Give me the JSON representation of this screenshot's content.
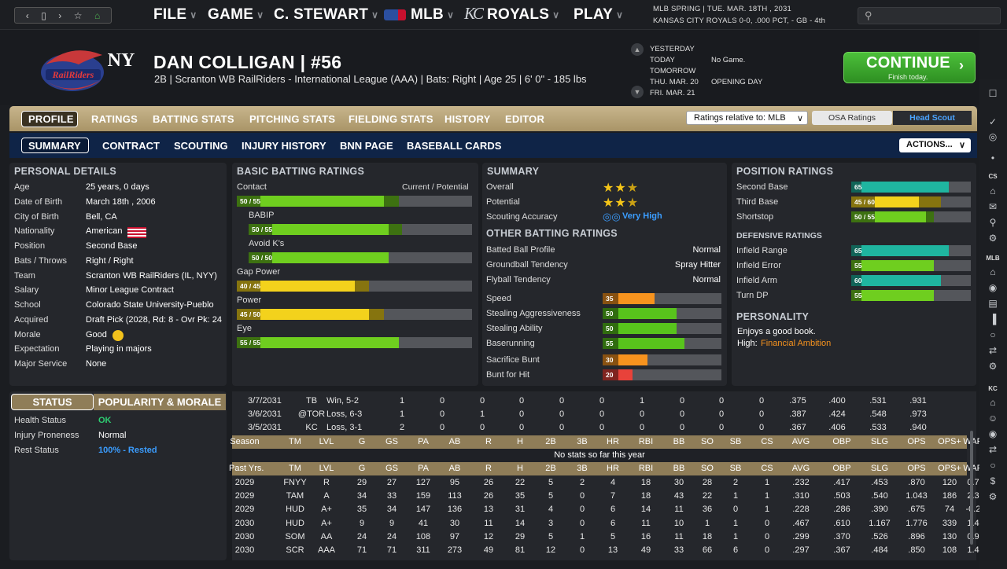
{
  "topbar": {
    "menus": [
      {
        "label": "FILE"
      },
      {
        "label": "GAME"
      },
      {
        "label": "C. STEWART"
      },
      {
        "label": "MLB"
      },
      {
        "label": "ROYALS"
      },
      {
        "label": "PLAY"
      }
    ],
    "game_info_line1": "MLB SPRING  |  TUE. MAR. 18TH , 2031",
    "game_info_line2": "KANSAS CITY ROYALS  0-0, .000 PCT, - GB - 4th"
  },
  "player": {
    "name": "DAN COLLIGAN  |  #56",
    "info": "2B | Scranton WB RailRiders - International League (AAA)  |  Bats: Right  |  Age 25  |  6' 0\" - 185 lbs"
  },
  "schedule": [
    {
      "day": "YESTERDAY",
      "event": ""
    },
    {
      "day": "TODAY",
      "event": "No Game."
    },
    {
      "day": "TOMORROW",
      "event": ""
    },
    {
      "day": "THU. MAR. 20",
      "event": "OPENING DAY"
    },
    {
      "day": "FRI. MAR. 21",
      "event": ""
    }
  ],
  "continue_button": {
    "label": "CONTINUE",
    "sub": "Finish today."
  },
  "tabs_main": [
    "PROFILE",
    "RATINGS",
    "BATTING STATS",
    "PITCHING STATS",
    "FIELDING STATS",
    "HISTORY",
    "EDITOR"
  ],
  "ratings_select": "Ratings relative to: MLB",
  "osa_button": "OSA Ratings",
  "scout_button": "Head Scout",
  "tabs_sub": [
    "SUMMARY",
    "CONTRACT",
    "SCOUTING",
    "INJURY HISTORY",
    "BNN PAGE",
    "BASEBALL CARDS"
  ],
  "actions_button": "ACTIONS...",
  "personal": {
    "title": "PERSONAL DETAILS",
    "rows": [
      {
        "label": "Age",
        "value": "25 years, 0 days"
      },
      {
        "label": "Date of Birth",
        "value": "March 18th , 2006"
      },
      {
        "label": "City of Birth",
        "value": "Bell, CA"
      },
      {
        "label": "Nationality",
        "value": "American"
      },
      {
        "label": "Position",
        "value": "Second Base"
      },
      {
        "label": "Bats / Throws",
        "value": "Right / Right"
      },
      {
        "label": "Team",
        "value": "Scranton WB RailRiders (IL, NYY)"
      },
      {
        "label": "Salary",
        "value": "Minor League Contract"
      },
      {
        "label": "School",
        "value": "Colorado State University-Pueblo"
      },
      {
        "label": "Acquired",
        "value": "Draft Pick (2028, Rd: 8 - Ovr Pk: 24"
      },
      {
        "label": "Morale",
        "value": "Good"
      },
      {
        "label": "Expectation",
        "value": "Playing in majors"
      },
      {
        "label": "Major Service",
        "value": "None"
      }
    ]
  },
  "status_tabs": {
    "status": "STATUS",
    "popularity": "POPULARITY & MORALE"
  },
  "status": [
    {
      "label": "Health Status",
      "value": "OK",
      "color": "#2ecc71"
    },
    {
      "label": "Injury Proneness",
      "value": "Normal",
      "color": "#ffffff"
    },
    {
      "label": "Rest Status",
      "value": "100% - Rested",
      "color": "#3b9dff"
    }
  ],
  "batting": {
    "title": "BASIC BATTING RATINGS",
    "header": "Current / Potential",
    "rows": [
      {
        "label": "Contact",
        "badge": "50 / 55",
        "current": 50,
        "potential": 55,
        "color": "#6fce1f"
      },
      {
        "label": "BABIP",
        "badge": "50 / 55",
        "current": 50,
        "potential": 55,
        "color": "#6fce1f"
      },
      {
        "label": "Avoid K's",
        "badge": "50 / 50",
        "current": 50,
        "potential": 50,
        "color": "#6fce1f"
      },
      {
        "label": "Gap Power",
        "badge": "40 / 45",
        "current": 40,
        "potential": 45,
        "color": "#f3d21c"
      },
      {
        "label": "Power",
        "badge": "45 / 50",
        "current": 45,
        "potential": 50,
        "color": "#f3d21c"
      },
      {
        "label": "Eye",
        "badge": "55 / 55",
        "current": 55,
        "potential": 55,
        "color": "#6fce1f"
      }
    ]
  },
  "summary": {
    "title": "SUMMARY",
    "overall_label": "Overall",
    "overall_stars": 2.5,
    "potential_label": "Potential",
    "potential_stars": 2.5,
    "accuracy_label": "Scouting Accuracy",
    "accuracy_value": "Very High",
    "other_title": "OTHER BATTING RATINGS",
    "other": [
      {
        "label": "Batted Ball Profile",
        "value": "Normal"
      },
      {
        "label": "Groundball Tendency",
        "value": "Spray Hitter"
      },
      {
        "label": "Flyball Tendency",
        "value": "Normal"
      }
    ],
    "running": [
      {
        "label": "Speed",
        "value": 35,
        "color": "#f7931e"
      },
      {
        "label": "Stealing Aggressiveness",
        "value": 50,
        "color": "#58c41c"
      },
      {
        "label": "Stealing Ability",
        "value": 50,
        "color": "#58c41c"
      },
      {
        "label": "Baserunning",
        "value": 55,
        "color": "#58c41c"
      }
    ],
    "bunting": [
      {
        "label": "Sacrifice Bunt",
        "value": 30,
        "color": "#f7931e"
      },
      {
        "label": "Bunt for Hit",
        "value": 20,
        "color": "#e8423a"
      }
    ]
  },
  "positions": {
    "title": "POSITION RATINGS",
    "rows": [
      {
        "label": "Second Base",
        "badge": "65",
        "current": 65,
        "potential": 65,
        "color": "#1fb5a0"
      },
      {
        "label": "Third Base",
        "badge": "45 / 60",
        "current": 45,
        "potential": 60,
        "color": "#f3d21c"
      },
      {
        "label": "Shortstop",
        "badge": "50 / 55",
        "current": 50,
        "potential": 55,
        "color": "#6fce1f"
      }
    ],
    "def_title": "DEFENSIVE RATINGS",
    "def_rows": [
      {
        "label": "Infield Range",
        "badge": "65",
        "value": 65,
        "color": "#1fb5a0"
      },
      {
        "label": "Infield Error",
        "badge": "55",
        "value": 55,
        "color": "#6fce1f"
      },
      {
        "label": "Infield Arm",
        "badge": "60",
        "value": 60,
        "color": "#1fb5a0"
      },
      {
        "label": "Turn DP",
        "badge": "55",
        "value": 55,
        "color": "#6fce1f"
      }
    ],
    "pers_title": "PERSONALITY",
    "pers_text": "Enjoys a good book.",
    "pers_high_label": "High:",
    "pers_high_value": "Financial Ambition"
  },
  "stats": {
    "recent_games": [
      [
        "3/7/2031",
        "TB",
        "Win, 5-2",
        "1",
        "0",
        "0",
        "0",
        "0",
        "0",
        "1",
        "0",
        "0",
        "0",
        ".375",
        ".400",
        ".531",
        ".931"
      ],
      [
        "3/6/2031",
        "@TOR",
        "Loss, 6-3",
        "1",
        "0",
        "1",
        "0",
        "0",
        "0",
        "0",
        "0",
        "0",
        "0",
        ".387",
        ".424",
        ".548",
        ".973"
      ],
      [
        "3/5/2031",
        "KC",
        "Loss, 3-1",
        "2",
        "0",
        "0",
        "0",
        "0",
        "0",
        "0",
        "0",
        "0",
        "0",
        ".367",
        ".406",
        ".533",
        ".940"
      ]
    ],
    "season_header": [
      "Season",
      "TM",
      "LVL",
      "G",
      "GS",
      "PA",
      "AB",
      "R",
      "H",
      "2B",
      "3B",
      "HR",
      "RBI",
      "BB",
      "SO",
      "SB",
      "CS",
      "AVG",
      "OBP",
      "SLG",
      "OPS",
      "OPS+",
      "WAR"
    ],
    "no_stats": "No stats so far this year",
    "past_header": [
      "Past Yrs.",
      "TM",
      "LVL",
      "G",
      "GS",
      "PA",
      "AB",
      "R",
      "H",
      "2B",
      "3B",
      "HR",
      "RBI",
      "BB",
      "SO",
      "SB",
      "CS",
      "AVG",
      "OBP",
      "SLG",
      "OPS",
      "OPS+",
      "WAR"
    ],
    "past_rows": [
      [
        "2029",
        "FNYY",
        "R",
        "29",
        "27",
        "127",
        "95",
        "26",
        "22",
        "5",
        "2",
        "4",
        "18",
        "30",
        "28",
        "2",
        "1",
        ".232",
        ".417",
        ".453",
        ".870",
        "120",
        "0.7"
      ],
      [
        "2029",
        "TAM",
        "A",
        "34",
        "33",
        "159",
        "113",
        "26",
        "35",
        "5",
        "0",
        "7",
        "18",
        "43",
        "22",
        "1",
        "1",
        ".310",
        ".503",
        ".540",
        "1.043",
        "186",
        "2.3"
      ],
      [
        "2029",
        "HUD",
        "A+",
        "35",
        "34",
        "147",
        "136",
        "13",
        "31",
        "4",
        "0",
        "6",
        "14",
        "11",
        "36",
        "0",
        "1",
        ".228",
        ".286",
        ".390",
        ".675",
        "74",
        "-0.2"
      ],
      [
        "2030",
        "HUD",
        "A+",
        "9",
        "9",
        "41",
        "30",
        "11",
        "14",
        "3",
        "0",
        "6",
        "11",
        "10",
        "1",
        "1",
        "0",
        ".467",
        ".610",
        "1.167",
        "1.776",
        "339",
        "1.4"
      ],
      [
        "2030",
        "SOM",
        "AA",
        "24",
        "24",
        "108",
        "97",
        "12",
        "29",
        "5",
        "1",
        "5",
        "16",
        "11",
        "18",
        "1",
        "0",
        ".299",
        ".370",
        ".526",
        ".896",
        "130",
        "0.9"
      ],
      [
        "2030",
        "SCR",
        "AAA",
        "71",
        "71",
        "311",
        "273",
        "49",
        "81",
        "12",
        "0",
        "13",
        "49",
        "33",
        "66",
        "6",
        "0",
        ".297",
        ".367",
        ".484",
        ".850",
        "108",
        "1.4"
      ]
    ]
  },
  "sidebar_labels": [
    "CS",
    "MLB",
    "KC"
  ]
}
